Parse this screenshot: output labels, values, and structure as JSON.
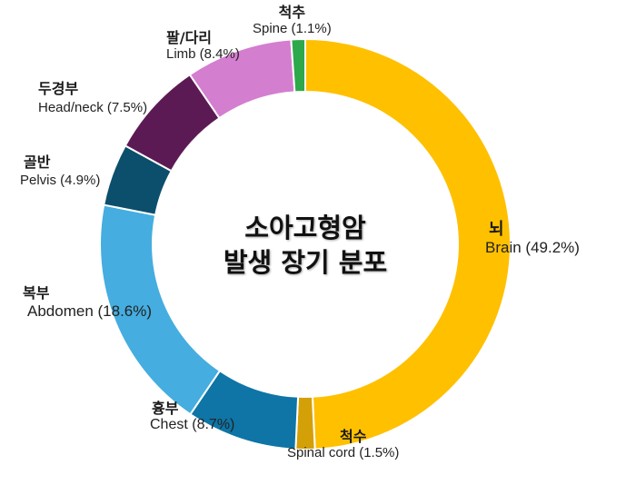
{
  "chart_data": {
    "type": "pie",
    "subtype": "donut",
    "title": "소아고형암 발생 장기 분포",
    "title_lines": [
      "소아고형암",
      "발생 장기 분포"
    ],
    "start_angle_deg": 0,
    "direction": "clockwise",
    "center": [
      336,
      269
    ],
    "outer_radius": 226,
    "inner_radius": 168,
    "slices": [
      {
        "key": "brain",
        "label_ko": "뇌",
        "label_en": "Brain (49.2%)",
        "value": 49.2,
        "color": "#FFC000"
      },
      {
        "key": "spinal_cord",
        "label_ko": "척수",
        "label_en": "Spinal cord (1.5%)",
        "value": 1.5,
        "color": "#D4A007"
      },
      {
        "key": "chest",
        "label_ko": "흉부",
        "label_en": "Chest (8.7%)",
        "value": 8.7,
        "color": "#0E75A6"
      },
      {
        "key": "abdomen",
        "label_ko": "복부",
        "label_en": "Abdomen (18.6%)",
        "value": 18.6,
        "color": "#45ADE0"
      },
      {
        "key": "pelvis",
        "label_ko": "골반",
        "label_en": "Pelvis (4.9%)",
        "value": 4.9,
        "color": "#0B4F6C"
      },
      {
        "key": "head_neck",
        "label_ko": "두경부",
        "label_en": "Head/neck (7.5%)",
        "value": 7.5,
        "color": "#5C1A55"
      },
      {
        "key": "limb",
        "label_ko": "팔/다리",
        "label_en": "Limb (8.4%)",
        "value": 8.4,
        "color": "#D47ED0"
      },
      {
        "key": "spine",
        "label_ko": "척추",
        "label_en": "Spine (1.1%)",
        "value": 1.1,
        "color": "#2DA84A"
      }
    ]
  },
  "labels": {
    "brain": {
      "ko": "뇌",
      "en": "Brain (49.2%)"
    },
    "spinal_cord": {
      "ko": "척수",
      "en": "Spinal cord (1.5%)"
    },
    "chest": {
      "ko": "흉부",
      "en": "Chest (8.7%)"
    },
    "abdomen": {
      "ko": "복부",
      "en": "Abdomen (18.6%)"
    },
    "pelvis": {
      "ko": "골반",
      "en": "Pelvis (4.9%)"
    },
    "head_neck": {
      "ko": "두경부",
      "en": "Head/neck (7.5%)"
    },
    "limb": {
      "ko": "팔/다리",
      "en": "Limb (8.4%)"
    },
    "spine": {
      "ko": "척추",
      "en": "Spine (1.1%)"
    }
  },
  "title": {
    "line1": "소아고형암",
    "line2": "발생 장기 분포"
  }
}
